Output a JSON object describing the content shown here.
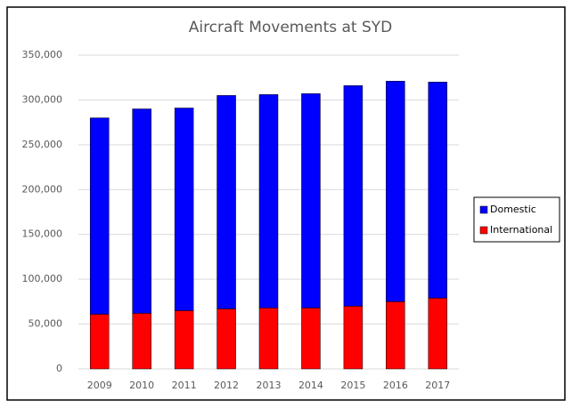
{
  "chart_data": {
    "type": "stacked_bar",
    "title": "Aircraft Movements at SYD",
    "categories": [
      "2009",
      "2010",
      "2011",
      "2012",
      "2013",
      "2014",
      "2015",
      "2016",
      "2017"
    ],
    "series": [
      {
        "name": "Domestic",
        "color": "#0000ff",
        "values": [
          219000,
          228000,
          226000,
          238000,
          238000,
          239000,
          246000,
          246000,
          241000
        ]
      },
      {
        "name": "International",
        "color": "#ff0000",
        "values": [
          61000,
          62000,
          65000,
          67000,
          68000,
          68000,
          70000,
          75000,
          79000
        ]
      }
    ],
    "ylim": [
      0,
      350000
    ],
    "yticks": [
      0,
      {
        "value": 50000,
        "label": "50,000"
      },
      {
        "value": 100000,
        "label": "100,000"
      },
      {
        "value": 150000,
        "label": "150,000"
      },
      {
        "value": 200000,
        "label": "200,000"
      },
      {
        "value": 250000,
        "label": "250,000"
      },
      {
        "value": 300000,
        "label": "300,000"
      },
      {
        "value": 350000,
        "label": "350,000"
      }
    ],
    "grid": true,
    "legend": "right"
  }
}
